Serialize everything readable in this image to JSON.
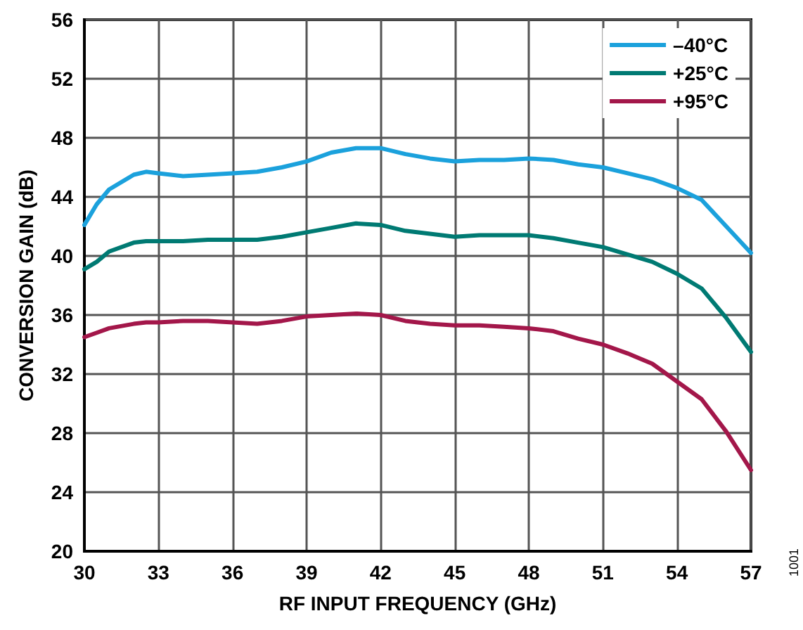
{
  "chart_data": {
    "type": "line",
    "xlabel": "RF INPUT FREQUENCY (GHz)",
    "ylabel": "CONVERSION GAIN (dB)",
    "x": [
      30,
      30.5,
      31,
      32,
      32.5,
      33,
      34,
      35,
      36,
      37,
      38,
      39,
      40,
      41,
      42,
      43,
      44,
      45,
      46,
      47,
      48,
      49,
      50,
      51,
      52,
      53,
      54,
      55,
      56,
      57
    ],
    "series": [
      {
        "name": "–40°C",
        "color": "#1ba1dc",
        "values": [
          42.1,
          43.5,
          44.5,
          45.5,
          45.7,
          45.6,
          45.4,
          45.5,
          45.6,
          45.7,
          46.0,
          46.4,
          47.0,
          47.3,
          47.3,
          46.9,
          46.6,
          46.4,
          46.5,
          46.5,
          46.6,
          46.5,
          46.2,
          46.0,
          45.6,
          45.2,
          44.6,
          43.8,
          42.0,
          40.2
        ]
      },
      {
        "name": "+25°C",
        "color": "#007a73",
        "values": [
          39.1,
          39.6,
          40.3,
          40.9,
          41.0,
          41.0,
          41.0,
          41.1,
          41.1,
          41.1,
          41.3,
          41.6,
          41.9,
          42.2,
          42.1,
          41.7,
          41.5,
          41.3,
          41.4,
          41.4,
          41.4,
          41.2,
          40.9,
          40.6,
          40.1,
          39.6,
          38.8,
          37.8,
          35.8,
          33.5
        ]
      },
      {
        "name": "+95°C",
        "color": "#a3174a",
        "values": [
          34.5,
          34.8,
          35.1,
          35.4,
          35.5,
          35.5,
          35.6,
          35.6,
          35.5,
          35.4,
          35.6,
          35.9,
          36.0,
          36.1,
          36.0,
          35.6,
          35.4,
          35.3,
          35.3,
          35.2,
          35.1,
          34.9,
          34.4,
          34.0,
          33.4,
          32.7,
          31.5,
          30.3,
          28.1,
          25.5
        ]
      }
    ],
    "xlim": [
      30,
      57
    ],
    "xticks": [
      30,
      33,
      36,
      39,
      42,
      45,
      48,
      51,
      54,
      57
    ],
    "ylim": [
      20,
      56
    ],
    "yticks": [
      20,
      24,
      28,
      32,
      36,
      40,
      44,
      48,
      52,
      56
    ],
    "grid": true,
    "legend": "top right",
    "marker": "none",
    "line_style": "solid",
    "annotations": [
      "1001"
    ]
  }
}
